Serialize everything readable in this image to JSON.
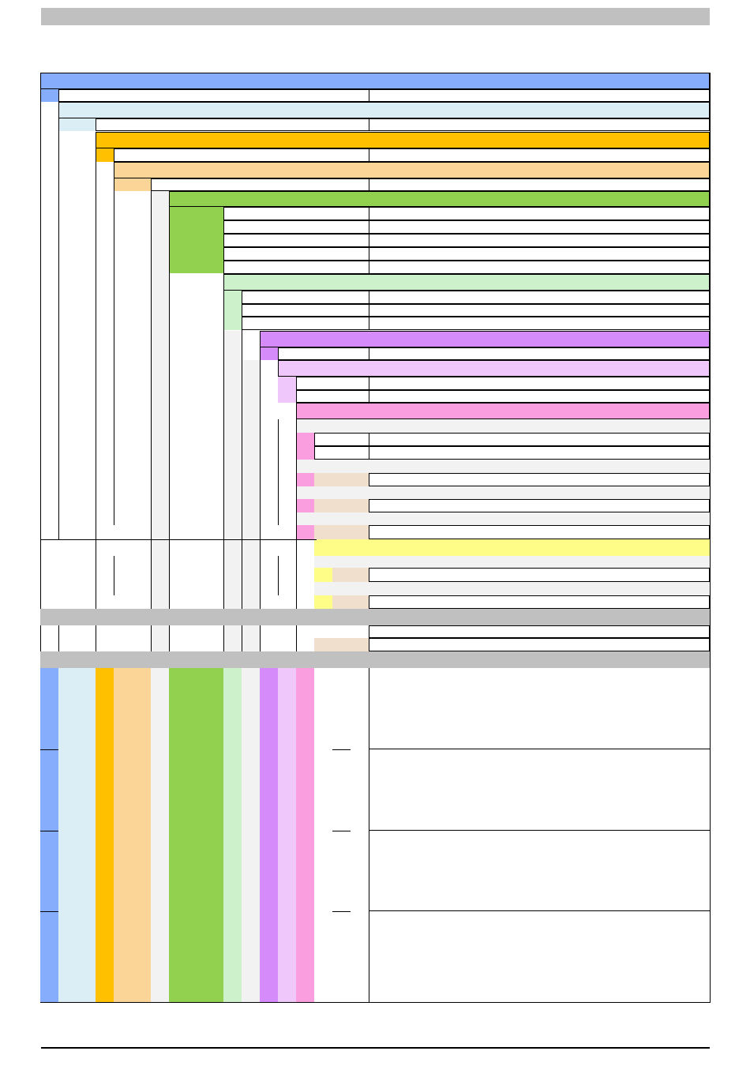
{
  "header_bar": {
    "label": ""
  },
  "document": {
    "title": "",
    "table": {
      "section_blue": {
        "label": ""
      },
      "section_light_blue": {
        "label": ""
      },
      "section_orange": {
        "label": ""
      },
      "section_light_orange": {
        "label": ""
      },
      "section_green": {
        "label": ""
      },
      "section_light_green": {
        "label": ""
      },
      "section_purple": {
        "label": ""
      },
      "section_light_purple": {
        "label": ""
      },
      "section_pink": {
        "label": ""
      },
      "section_yellow": {
        "label": ""
      }
    }
  },
  "colors": {
    "blue": "#86adfb",
    "light_blue": "#dbeef5",
    "orange": "#ffc000",
    "light_orange": "#fbd597",
    "green": "#92d050",
    "light_green": "#ccf1cb",
    "purple": "#d68bfb",
    "light_purple": "#efc7fb",
    "pink": "#fb9ee0",
    "yellow": "#fdfd88",
    "beige": "#f0dfcd",
    "gray_bar": "#c0c0c0"
  },
  "footer": {
    "text": ""
  }
}
